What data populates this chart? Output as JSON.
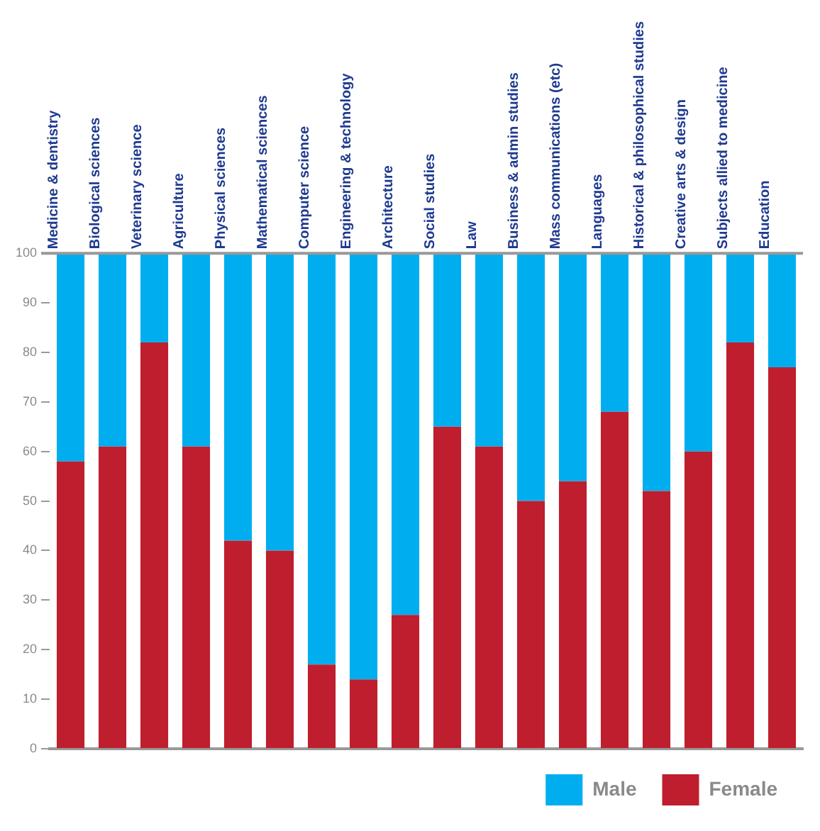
{
  "chart_data": {
    "type": "bar",
    "stacked": true,
    "categories": [
      "Medicine & dentistry",
      "Biological sciences",
      "Veterinary science",
      "Agriculture",
      "Physical sciences",
      "Mathematical sciences",
      "Computer science",
      "Engineering & technology",
      "Architecture",
      "Social studies",
      "Law",
      "Business & admin studies",
      "Mass communications (etc)",
      "Languages",
      "Historical & philosophical studies",
      "Creative arts & design",
      "Subjects allied to medicine",
      "Education"
    ],
    "series": [
      {
        "name": "Female",
        "color": "#be1e2d",
        "values": [
          58,
          61,
          82,
          61,
          42,
          40,
          17,
          14,
          27,
          65,
          61,
          50,
          54,
          68,
          52,
          60,
          82,
          77
        ]
      },
      {
        "name": "Male",
        "color": "#00aeef",
        "values": [
          42,
          39,
          18,
          39,
          58,
          60,
          83,
          86,
          73,
          35,
          39,
          50,
          46,
          32,
          48,
          40,
          18,
          23
        ]
      }
    ],
    "ylim": [
      0,
      100
    ],
    "yticks": [
      0,
      10,
      20,
      30,
      40,
      50,
      60,
      70,
      80,
      90,
      100
    ],
    "grid": false,
    "legend": "bottom right"
  }
}
